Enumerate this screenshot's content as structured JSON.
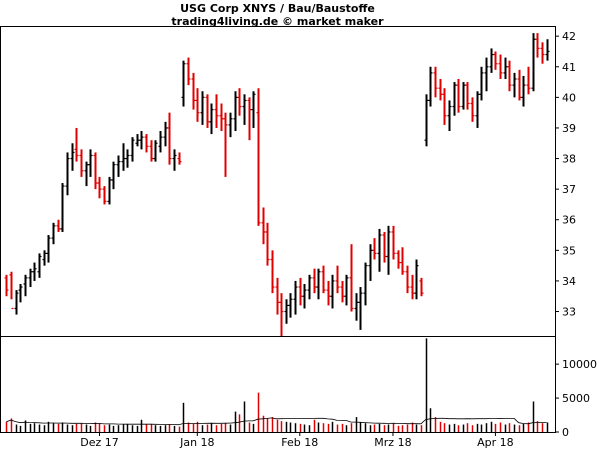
{
  "title_line1": "USG Corp XNYS / Bau/Baustoffe",
  "title_line2": "trading4living.de © market maker",
  "chart_data": {
    "type": "ohlc-bar-with-volume",
    "up_color": "#000000",
    "down_color": "#e00000",
    "price_axis": {
      "range": [
        32.2,
        42.3
      ],
      "ticks": [
        33,
        34,
        35,
        36,
        37,
        38,
        39,
        40,
        41,
        42
      ],
      "position": "right",
      "grid": false
    },
    "volume_axis": {
      "range": [
        0,
        14000
      ],
      "ticks": [
        0,
        5000,
        10000
      ],
      "position": "right"
    },
    "x_labels": [
      {
        "label": "Dez 17",
        "index": 20
      },
      {
        "label": "Jan 18",
        "index": 41
      },
      {
        "label": "Feb 18",
        "index": 63
      },
      {
        "label": "Mrz 18",
        "index": 83
      },
      {
        "label": "Apr 18",
        "index": 105
      }
    ],
    "ohlc": [
      [
        34.1,
        33.5,
        34.2,
        33.7
      ],
      [
        34.2,
        33.4,
        34.3,
        33.1
      ],
      [
        33.1,
        32.9,
        33.7,
        33.6
      ],
      [
        33.7,
        33.3,
        33.9,
        33.8
      ],
      [
        33.9,
        33.5,
        34.2,
        34.1
      ],
      [
        34.1,
        33.8,
        34.4,
        34.3
      ],
      [
        34.3,
        34.0,
        34.6,
        34.4
      ],
      [
        34.3,
        34.1,
        34.9,
        34.8
      ],
      [
        34.7,
        34.5,
        35.0,
        34.9
      ],
      [
        34.9,
        34.6,
        35.5,
        35.4
      ],
      [
        35.4,
        35.2,
        35.9,
        35.8
      ],
      [
        35.8,
        35.6,
        36.0,
        35.7
      ],
      [
        35.7,
        35.6,
        37.2,
        37.1
      ],
      [
        37.1,
        36.8,
        38.2,
        38.0
      ],
      [
        38.0,
        37.6,
        38.5,
        38.2
      ],
      [
        38.3,
        37.9,
        39.0,
        38.1
      ],
      [
        38.1,
        37.4,
        38.3,
        37.6
      ],
      [
        37.6,
        37.1,
        37.9,
        37.8
      ],
      [
        37.8,
        37.4,
        38.3,
        38.1
      ],
      [
        38.1,
        37.0,
        38.2,
        37.2
      ],
      [
        37.2,
        36.7,
        37.4,
        37.0
      ],
      [
        37.0,
        36.5,
        37.1,
        36.6
      ],
      [
        36.6,
        36.5,
        37.4,
        37.3
      ],
      [
        37.3,
        37.0,
        37.9,
        37.8
      ],
      [
        37.8,
        37.4,
        38.1,
        37.9
      ],
      [
        37.9,
        37.6,
        38.5,
        38.0
      ],
      [
        38.0,
        37.7,
        38.3,
        38.1
      ],
      [
        38.1,
        37.9,
        38.7,
        38.6
      ],
      [
        38.5,
        38.4,
        38.8,
        38.6
      ],
      [
        38.6,
        38.3,
        38.9,
        38.7
      ],
      [
        38.7,
        38.2,
        38.8,
        38.4
      ],
      [
        38.4,
        37.9,
        38.6,
        38.0
      ],
      [
        38.0,
        37.9,
        38.6,
        38.5
      ],
      [
        38.4,
        38.2,
        38.9,
        38.7
      ],
      [
        38.7,
        38.4,
        39.2,
        39.0
      ],
      [
        39.0,
        37.8,
        39.5,
        38.0
      ],
      [
        38.0,
        37.6,
        38.3,
        38.1
      ],
      [
        38.0,
        37.8,
        38.2,
        37.9
      ],
      [
        40.0,
        39.7,
        41.2,
        41.1
      ],
      [
        41.1,
        40.4,
        41.3,
        40.6
      ],
      [
        40.6,
        39.6,
        40.8,
        39.9
      ],
      [
        39.9,
        39.2,
        40.3,
        39.5
      ],
      [
        39.5,
        39.1,
        40.2,
        40.0
      ],
      [
        40.0,
        39.0,
        40.1,
        39.2
      ],
      [
        39.2,
        38.8,
        39.8,
        39.6
      ],
      [
        39.6,
        39.0,
        40.1,
        39.4
      ],
      [
        39.4,
        38.9,
        39.8,
        39.3
      ],
      [
        39.3,
        37.4,
        39.5,
        39.1
      ],
      [
        39.1,
        38.7,
        39.5,
        39.3
      ],
      [
        39.3,
        38.9,
        40.2,
        40.0
      ],
      [
        40.0,
        39.4,
        40.3,
        39.7
      ],
      [
        39.7,
        39.1,
        40.1,
        39.9
      ],
      [
        39.9,
        38.6,
        40.0,
        39.6
      ],
      [
        39.6,
        39.0,
        40.2,
        40.1
      ],
      [
        39.5,
        35.8,
        40.3,
        35.9
      ],
      [
        35.9,
        35.2,
        36.4,
        35.6
      ],
      [
        35.6,
        34.5,
        35.9,
        34.7
      ],
      [
        34.7,
        33.6,
        35.0,
        33.8
      ],
      [
        33.8,
        32.9,
        34.1,
        33.3
      ],
      [
        33.3,
        32.2,
        33.6,
        33.0
      ],
      [
        33.0,
        32.6,
        33.4,
        33.2
      ],
      [
        33.2,
        32.8,
        33.6,
        33.4
      ],
      [
        33.4,
        32.9,
        34.0,
        33.8
      ],
      [
        33.8,
        33.2,
        34.1,
        33.5
      ],
      [
        33.5,
        33.1,
        33.9,
        33.7
      ],
      [
        33.7,
        33.4,
        34.2,
        34.1
      ],
      [
        34.1,
        33.6,
        34.4,
        33.8
      ],
      [
        33.8,
        33.4,
        34.4,
        34.3
      ],
      [
        34.3,
        33.6,
        34.5,
        33.7
      ],
      [
        33.7,
        33.2,
        34.0,
        33.5
      ],
      [
        33.5,
        33.1,
        34.2,
        34.0
      ],
      [
        34.0,
        33.6,
        34.5,
        33.8
      ],
      [
        33.8,
        33.3,
        34.0,
        33.5
      ],
      [
        33.5,
        33.2,
        34.2,
        34.1
      ],
      [
        34.1,
        33.0,
        35.2,
        33.1
      ],
      [
        33.1,
        32.7,
        33.6,
        33.3
      ],
      [
        33.3,
        32.4,
        33.8,
        33.6
      ],
      [
        33.6,
        33.2,
        34.6,
        34.5
      ],
      [
        34.5,
        34.0,
        35.2,
        35.0
      ],
      [
        35.0,
        34.7,
        35.4,
        34.9
      ],
      [
        34.9,
        34.3,
        35.7,
        35.5
      ],
      [
        35.5,
        34.6,
        35.6,
        34.8
      ],
      [
        34.8,
        34.2,
        35.8,
        35.6
      ],
      [
        35.6,
        34.7,
        35.8,
        34.9
      ],
      [
        34.9,
        34.4,
        35.0,
        34.6
      ],
      [
        34.6,
        34.2,
        35.1,
        34.3
      ],
      [
        34.3,
        33.6,
        34.5,
        33.8
      ],
      [
        33.8,
        33.4,
        34.2,
        33.6
      ],
      [
        33.6,
        33.4,
        34.7,
        34.5
      ],
      [
        34.0,
        33.5,
        34.1,
        33.6
      ],
      [
        38.6,
        38.4,
        40.1,
        39.9
      ],
      [
        39.9,
        39.7,
        41.0,
        40.8
      ],
      [
        40.8,
        40.0,
        41.0,
        40.3
      ],
      [
        40.3,
        39.9,
        40.6,
        40.1
      ],
      [
        40.1,
        39.1,
        40.3,
        39.4
      ],
      [
        39.4,
        38.9,
        39.9,
        39.7
      ],
      [
        39.7,
        39.4,
        40.5,
        40.4
      ],
      [
        40.4,
        39.5,
        40.6,
        39.7
      ],
      [
        39.7,
        39.6,
        40.5,
        40.4
      ],
      [
        40.4,
        39.6,
        40.5,
        39.8
      ],
      [
        39.8,
        39.2,
        40.0,
        39.4
      ],
      [
        39.4,
        39.0,
        40.2,
        40.1
      ],
      [
        40.1,
        39.9,
        41.0,
        40.8
      ],
      [
        40.8,
        40.2,
        41.3,
        41.0
      ],
      [
        41.0,
        40.8,
        41.6,
        41.4
      ],
      [
        41.4,
        40.9,
        41.5,
        41.1
      ],
      [
        41.1,
        40.6,
        41.4,
        40.8
      ],
      [
        40.8,
        40.6,
        41.3,
        41.0
      ],
      [
        41.0,
        40.2,
        41.2,
        40.4
      ],
      [
        40.4,
        40.0,
        40.8,
        40.6
      ],
      [
        40.6,
        39.9,
        40.9,
        40.0
      ],
      [
        40.0,
        39.7,
        40.7,
        40.4
      ],
      [
        40.4,
        40.1,
        41.0,
        40.3
      ],
      [
        40.3,
        40.2,
        42.1,
        41.9
      ],
      [
        41.9,
        41.3,
        42.1,
        41.6
      ],
      [
        41.6,
        41.1,
        41.8,
        41.4
      ],
      [
        41.4,
        41.2,
        41.9,
        41.5
      ]
    ],
    "volume": [
      1500,
      2000,
      1100,
      900,
      1700,
      1200,
      1300,
      1100,
      1000,
      1500,
      1300,
      1200,
      1400,
      1100,
      1000,
      1200,
      1300,
      1100,
      900,
      1400,
      1300,
      1000,
      1100,
      900,
      1000,
      1100,
      1200,
      1000,
      900,
      1800,
      1100,
      1200,
      1000,
      900,
      1000,
      1100,
      900,
      800,
      4300,
      1400,
      1200,
      1500,
      1000,
      1100,
      1300,
      1000,
      1200,
      1300,
      1100,
      3000,
      2600,
      4500,
      1400,
      1200,
      5800,
      2400,
      2000,
      2200,
      1800,
      1600,
      1500,
      1400,
      1300,
      1200,
      1100,
      1000,
      1800,
      1400,
      1300,
      1200,
      1500,
      1100,
      1200,
      1000,
      1300,
      2200,
      1400,
      1300,
      1000,
      1100,
      1200,
      1000,
      1100,
      1300,
      900,
      1000,
      1100,
      1400,
      1100,
      1000,
      13800,
      3500,
      2200,
      1500,
      1300,
      1100,
      1200,
      1000,
      1100,
      1300,
      1000,
      1200,
      1100,
      1300,
      1500,
      1200,
      1400,
      1100,
      1300,
      1100,
      1000,
      1200,
      1400,
      4500,
      1600,
      1300,
      1400
    ]
  }
}
